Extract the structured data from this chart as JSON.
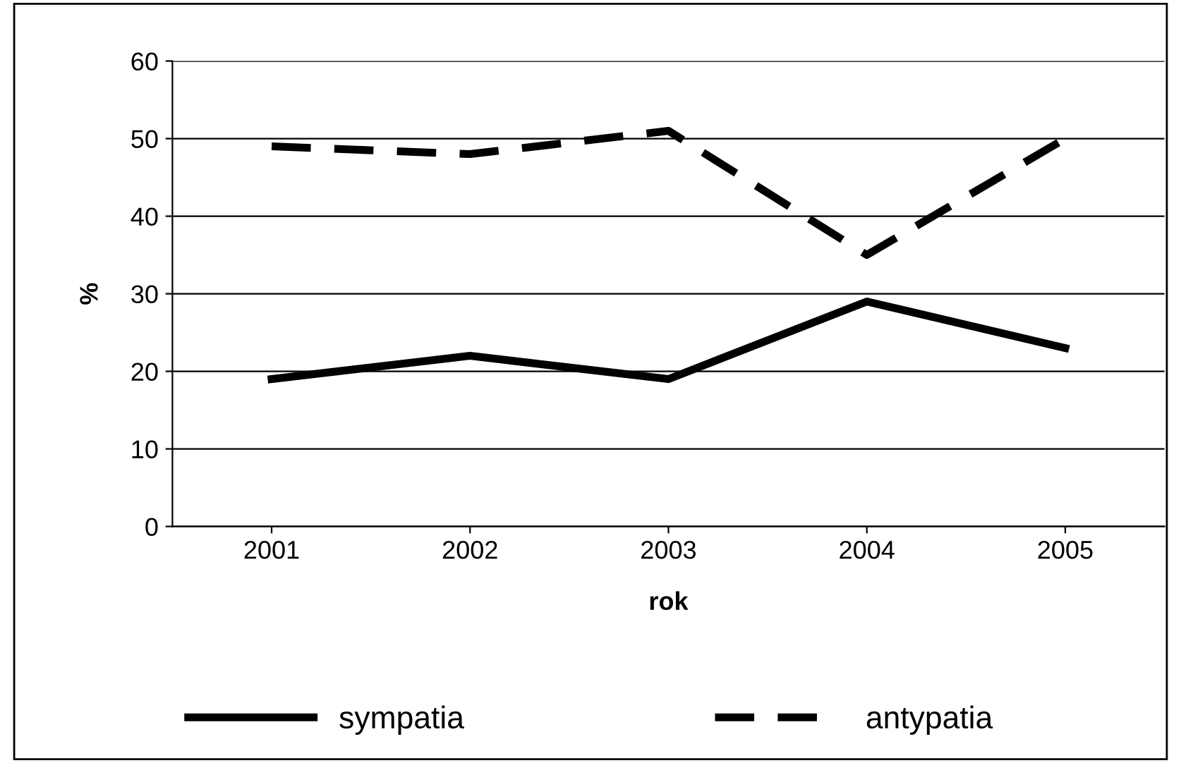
{
  "chart_data": {
    "type": "line",
    "xlabel": "rok",
    "ylabel": "%",
    "categories": [
      "2001",
      "2002",
      "2003",
      "2004",
      "2005"
    ],
    "series": [
      {
        "name": "sympatia",
        "color": "#000000",
        "line_style": "solid",
        "values": [
          19,
          22,
          19,
          29,
          23
        ]
      },
      {
        "name": "antypatia",
        "color": "#000000",
        "line_style": "dashed",
        "values": [
          49,
          48,
          51,
          35,
          50
        ]
      }
    ],
    "ylim": [
      0,
      60
    ],
    "yticks": [
      0,
      10,
      20,
      30,
      40,
      50,
      60
    ],
    "grid": "y",
    "legend": "bottom",
    "marker": "none"
  }
}
